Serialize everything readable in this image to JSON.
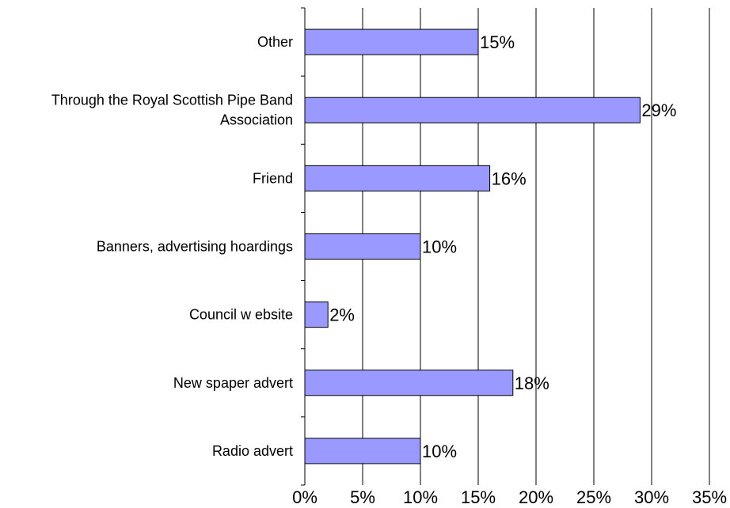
{
  "chart_data": {
    "type": "bar",
    "orientation": "horizontal",
    "categories": [
      "Other",
      "Through the Royal Scottish Pipe Band Association",
      "Friend",
      "Banners, advertising hoardings",
      "Council w ebsite",
      "New spaper advert",
      "Radio advert"
    ],
    "category_label_lines": [
      [
        "Other"
      ],
      [
        "Through the Royal Scottish Pipe Band",
        "Association"
      ],
      [
        "Friend"
      ],
      [
        "Banners, advertising hoardings"
      ],
      [
        "Council w ebsite"
      ],
      [
        "New spaper advert"
      ],
      [
        "Radio advert"
      ]
    ],
    "values": [
      15,
      29,
      16,
      10,
      2,
      18,
      10
    ],
    "data_labels": [
      "15%",
      "29%",
      "16%",
      "10%",
      "2%",
      "18%",
      "10%"
    ],
    "xlim": [
      0,
      35
    ],
    "x_ticks": [
      0,
      5,
      10,
      15,
      20,
      25,
      30,
      35
    ],
    "x_tick_labels": [
      "0%",
      "5%",
      "10%",
      "15%",
      "20%",
      "25%",
      "30%",
      "35%"
    ],
    "grid": "vertical",
    "legend": "none",
    "title": "",
    "xlabel": "",
    "ylabel": "",
    "colors": {
      "bar_fill": "#9999ff",
      "bar_stroke": "#000000",
      "grid": "#000000",
      "background": "#ffffff"
    }
  }
}
